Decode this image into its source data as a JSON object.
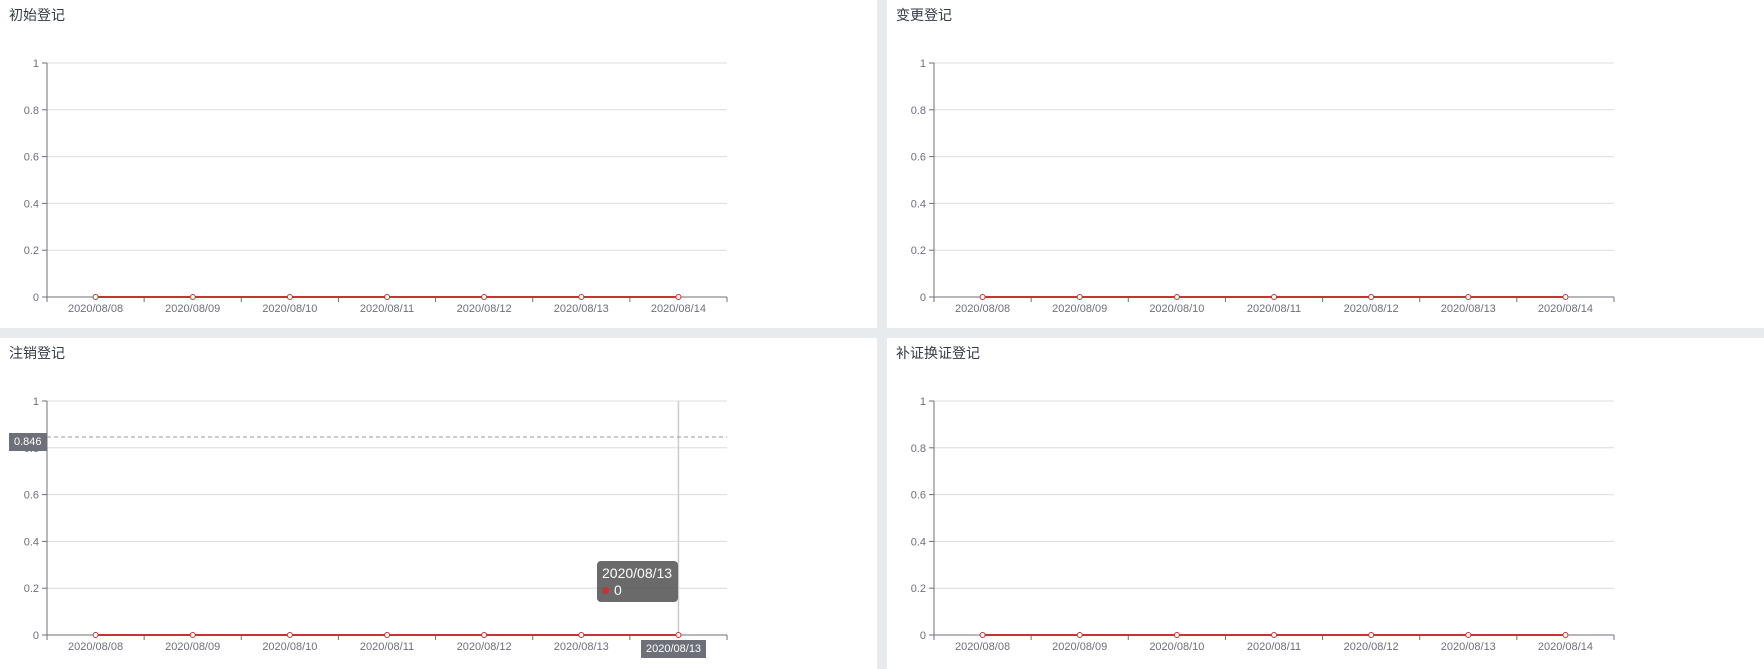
{
  "panels": [
    {
      "title": "初始登记"
    },
    {
      "title": "变更登记"
    },
    {
      "title": "注销登记"
    },
    {
      "title": "补证换证登记"
    }
  ],
  "chart_data": [
    {
      "type": "line",
      "title": "初始登记",
      "categories": [
        "2020/08/08",
        "2020/08/09",
        "2020/08/10",
        "2020/08/11",
        "2020/08/12",
        "2020/08/13",
        "2020/08/14"
      ],
      "values": [
        0,
        0,
        0,
        0,
        0,
        0,
        0
      ],
      "ylim": [
        0,
        1
      ],
      "yticks": [
        "0",
        "0.2",
        "0.4",
        "0.6",
        "0.8",
        "1"
      ],
      "grid": true,
      "line_color": "#c23531"
    },
    {
      "type": "line",
      "title": "变更登记",
      "categories": [
        "2020/08/08",
        "2020/08/09",
        "2020/08/10",
        "2020/08/11",
        "2020/08/12",
        "2020/08/13",
        "2020/08/14"
      ],
      "values": [
        0,
        0,
        0,
        0,
        0,
        0,
        0
      ],
      "ylim": [
        0,
        1
      ],
      "yticks": [
        "0",
        "0.2",
        "0.4",
        "0.6",
        "0.8",
        "1"
      ],
      "grid": true,
      "line_color": "#c23531"
    },
    {
      "type": "line",
      "title": "注销登记",
      "categories": [
        "2020/08/08",
        "2020/08/09",
        "2020/08/10",
        "2020/08/11",
        "2020/08/12",
        "2020/08/13",
        "2020/08/14"
      ],
      "values": [
        0,
        0,
        0,
        0,
        0,
        0,
        0
      ],
      "ylim": [
        0,
        1
      ],
      "yticks": [
        "0",
        "0.2",
        "0.4",
        "0.6",
        "0.8",
        "1"
      ],
      "grid": true,
      "line_color": "#c23531",
      "hover": {
        "category_index": 6,
        "x_label": "2020/08/13",
        "y_value": 0.846,
        "y_label": "0.846",
        "tooltip_title": "2020/08/13",
        "tooltip_value": "0"
      }
    },
    {
      "type": "line",
      "title": "补证换证登记",
      "categories": [
        "2020/08/08",
        "2020/08/09",
        "2020/08/10",
        "2020/08/11",
        "2020/08/12",
        "2020/08/13",
        "2020/08/14"
      ],
      "values": [
        0,
        0,
        0,
        0,
        0,
        0,
        0
      ],
      "ylim": [
        0,
        1
      ],
      "yticks": [
        "0",
        "0.2",
        "0.4",
        "0.6",
        "0.8",
        "1"
      ],
      "grid": true,
      "line_color": "#c23531"
    }
  ]
}
